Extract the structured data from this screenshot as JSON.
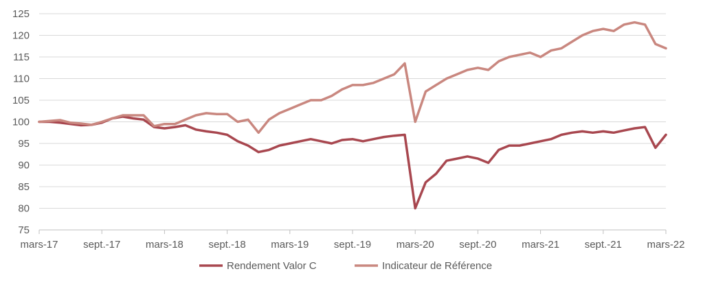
{
  "chart_data": {
    "type": "line",
    "title": "",
    "xlabel": "",
    "ylabel": "",
    "ylim": [
      75,
      125
    ],
    "y_ticks": [
      75,
      80,
      85,
      90,
      95,
      100,
      105,
      110,
      115,
      120,
      125
    ],
    "x_ticks": [
      "mars-17",
      "sept.-17",
      "mars-18",
      "sept.-18",
      "mars-19",
      "sept.-19",
      "mars-20",
      "sept.-20",
      "mars-21",
      "sept.-21",
      "mars-22"
    ],
    "grid": "horizontal",
    "legend_position": "bottom",
    "x": [
      "2017-03",
      "2017-04",
      "2017-05",
      "2017-06",
      "2017-07",
      "2017-08",
      "2017-09",
      "2017-10",
      "2017-11",
      "2017-12",
      "2018-01",
      "2018-02",
      "2018-03",
      "2018-04",
      "2018-05",
      "2018-06",
      "2018-07",
      "2018-08",
      "2018-09",
      "2018-10",
      "2018-11",
      "2018-12",
      "2019-01",
      "2019-02",
      "2019-03",
      "2019-04",
      "2019-05",
      "2019-06",
      "2019-07",
      "2019-08",
      "2019-09",
      "2019-10",
      "2019-11",
      "2019-12",
      "2020-01",
      "2020-02",
      "2020-03",
      "2020-04",
      "2020-05",
      "2020-06",
      "2020-07",
      "2020-08",
      "2020-09",
      "2020-10",
      "2020-11",
      "2020-12",
      "2021-01",
      "2021-02",
      "2021-03",
      "2021-04",
      "2021-05",
      "2021-06",
      "2021-07",
      "2021-08",
      "2021-09",
      "2021-10",
      "2021-11",
      "2021-12",
      "2022-01",
      "2022-02",
      "2022-03"
    ],
    "series": [
      {
        "name": "Rendement Valor C",
        "color": "#a8474f",
        "values": [
          100,
          100,
          99.8,
          99.5,
          99.2,
          99.3,
          99.8,
          100.8,
          101.2,
          100.8,
          100.5,
          98.8,
          98.5,
          98.8,
          99.2,
          98.2,
          97.8,
          97.5,
          97.0,
          95.5,
          94.5,
          93.0,
          93.5,
          94.5,
          95.0,
          95.5,
          96.0,
          95.5,
          95.0,
          95.8,
          96.0,
          95.5,
          96.0,
          96.5,
          96.8,
          97.0,
          80.0,
          86.0,
          88.0,
          91.0,
          91.5,
          92.0,
          91.5,
          90.5,
          93.5,
          94.5,
          94.5,
          95.0,
          95.5,
          96.0,
          97.0,
          97.5,
          97.8,
          97.5,
          97.8,
          97.5,
          98.0,
          98.5,
          98.8,
          94.0,
          97.0
        ]
      },
      {
        "name": "Indicateur de Référence",
        "color": "#c9877f",
        "values": [
          100,
          100.2,
          100.4,
          99.8,
          99.6,
          99.3,
          100.0,
          100.8,
          101.5,
          101.5,
          101.5,
          99.0,
          99.5,
          99.5,
          100.5,
          101.5,
          102.0,
          101.8,
          101.8,
          100.0,
          100.5,
          97.5,
          100.5,
          102.0,
          103.0,
          104.0,
          105.0,
          105.0,
          106.0,
          107.5,
          108.5,
          108.5,
          109.0,
          110.0,
          111.0,
          113.5,
          100.0,
          107.0,
          108.5,
          110.0,
          111.0,
          112.0,
          112.5,
          112.0,
          114.0,
          115.0,
          115.5,
          116.0,
          115.0,
          116.5,
          117.0,
          118.5,
          120.0,
          121.0,
          121.5,
          121.0,
          122.5,
          123.0,
          122.5,
          118.0,
          117.0
        ]
      }
    ]
  }
}
